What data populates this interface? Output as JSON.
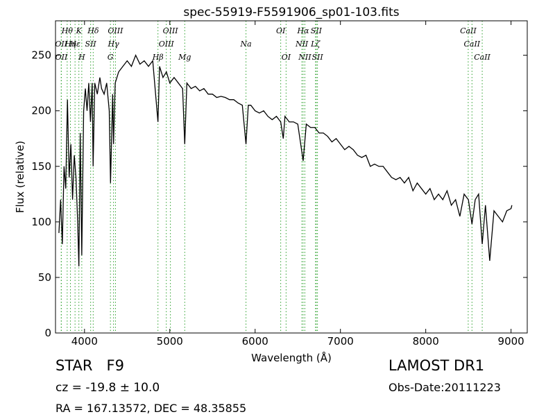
{
  "chart_data": {
    "type": "line",
    "title": "spec-55919-F5591906_sp01-103.fits",
    "x_label": "Wavelength (Å)",
    "y_label": "Flux (relative)",
    "xlim": [
      3660,
      9190
    ],
    "ylim": [
      0,
      281
    ],
    "xticks": [
      4000,
      5000,
      6000,
      7000,
      8000,
      9000
    ],
    "yticks": [
      0,
      50,
      100,
      150,
      200,
      250
    ],
    "series": [
      {
        "color": "#000000",
        "x": [
          3700,
          3720,
          3740,
          3760,
          3780,
          3800,
          3820,
          3840,
          3860,
          3880,
          3900,
          3920,
          3934,
          3950,
          3968,
          3990,
          4010,
          4030,
          4050,
          4070,
          4090,
          4101,
          4120,
          4150,
          4180,
          4200,
          4230,
          4260,
          4290,
          4305,
          4330,
          4340,
          4360,
          4400,
          4450,
          4500,
          4550,
          4600,
          4650,
          4700,
          4750,
          4800,
          4861,
          4880,
          4920,
          4960,
          5000,
          5050,
          5100,
          5150,
          5175,
          5200,
          5250,
          5300,
          5350,
          5400,
          5450,
          5500,
          5550,
          5600,
          5650,
          5700,
          5750,
          5800,
          5850,
          5893,
          5920,
          5950,
          6000,
          6050,
          6100,
          6150,
          6200,
          6250,
          6300,
          6330,
          6350,
          6400,
          6450,
          6500,
          6563,
          6600,
          6650,
          6700,
          6750,
          6800,
          6850,
          6900,
          6950,
          7000,
          7050,
          7100,
          7150,
          7200,
          7250,
          7300,
          7350,
          7400,
          7450,
          7500,
          7550,
          7600,
          7650,
          7700,
          7750,
          7800,
          7850,
          7900,
          7950,
          8000,
          8050,
          8100,
          8150,
          8200,
          8250,
          8300,
          8350,
          8400,
          8450,
          8500,
          8542,
          8580,
          8620,
          8662,
          8700,
          8750,
          8800,
          8850,
          8900,
          8950,
          9000,
          9010
        ],
        "values": [
          90,
          120,
          80,
          150,
          130,
          210,
          140,
          170,
          120,
          160,
          140,
          100,
          60,
          180,
          70,
          200,
          220,
          200,
          225,
          190,
          225,
          150,
          225,
          215,
          230,
          220,
          215,
          225,
          200,
          135,
          215,
          170,
          225,
          235,
          240,
          245,
          240,
          250,
          242,
          245,
          240,
          245,
          190,
          240,
          230,
          235,
          225,
          230,
          225,
          220,
          170,
          225,
          220,
          222,
          218,
          220,
          215,
          215,
          212,
          213,
          212,
          210,
          210,
          207,
          205,
          170,
          205,
          205,
          200,
          198,
          200,
          195,
          192,
          195,
          190,
          175,
          195,
          190,
          190,
          188,
          155,
          188,
          185,
          185,
          180,
          180,
          177,
          172,
          175,
          170,
          165,
          168,
          165,
          160,
          158,
          160,
          150,
          152,
          150,
          150,
          145,
          140,
          138,
          140,
          135,
          140,
          128,
          135,
          130,
          125,
          130,
          120,
          125,
          120,
          128,
          115,
          120,
          105,
          125,
          120,
          98,
          120,
          125,
          80,
          115,
          65,
          110,
          105,
          100,
          110,
          112,
          115
        ]
      }
    ],
    "line_labels": [
      [
        {
          "wavelength": 3797,
          "label": "Hθ"
        },
        {
          "wavelength": 3934,
          "label": "K"
        },
        {
          "wavelength": 4102,
          "label": "Hδ"
        },
        {
          "wavelength": 4363,
          "label": "OIII"
        },
        {
          "wavelength": 5007,
          "label": "OIII"
        },
        {
          "wavelength": 6300,
          "label": "OI"
        },
        {
          "wavelength": 6563,
          "label": "Hα"
        },
        {
          "wavelength": 6717,
          "label": "SII"
        },
        {
          "wavelength": 8498,
          "label": "CaII"
        }
      ],
      [
        {
          "wavelength": 3727,
          "label": "OII"
        },
        {
          "wavelength": 3835,
          "label": "Hη"
        },
        {
          "wavelength": 3889,
          "label": "Hε"
        },
        {
          "wavelength": 4072,
          "label": "SII"
        },
        {
          "wavelength": 4340,
          "label": "Hγ"
        },
        {
          "wavelength": 4959,
          "label": "OIII"
        },
        {
          "wavelength": 5893,
          "label": "Na"
        },
        {
          "wavelength": 6548,
          "label": "NII"
        },
        {
          "wavelength": 6708,
          "label": "Lζ"
        },
        {
          "wavelength": 8542,
          "label": "CaII"
        }
      ],
      [
        {
          "wavelength": 3729,
          "label": "OII"
        },
        {
          "wavelength": 3968,
          "label": "H"
        },
        {
          "wavelength": 4304,
          "label": "G"
        },
        {
          "wavelength": 4861,
          "label": "Hβ"
        },
        {
          "wavelength": 5175,
          "label": "Mg"
        },
        {
          "wavelength": 6363,
          "label": "OI"
        },
        {
          "wavelength": 6583,
          "label": "NII"
        },
        {
          "wavelength": 6731,
          "label": "SII"
        },
        {
          "wavelength": 8662,
          "label": "CaII"
        }
      ]
    ],
    "line_color": "#2ca02c",
    "info": {
      "object": "STAR   F9",
      "survey": "LAMOST DR1",
      "cz": "cz = -19.8 ± 10.0",
      "obs_date": "Obs-Date:20111223",
      "coords": "RA = 167.13572, DEC = 48.35855"
    }
  }
}
